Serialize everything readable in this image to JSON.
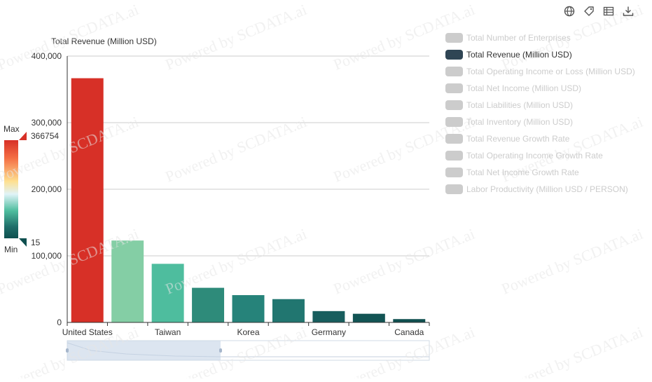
{
  "watermark_text": "Powered by SCDATA.ai",
  "toolbar": [
    {
      "name": "globe-icon"
    },
    {
      "name": "tag-icon"
    },
    {
      "name": "data-view-icon"
    },
    {
      "name": "download-icon"
    }
  ],
  "legend": {
    "items": [
      {
        "label": "Total Number of Enterprises",
        "active": false
      },
      {
        "label": "Total Revenue (Million USD)",
        "active": true
      },
      {
        "label": "Total Operating Income or Loss (Million USD)",
        "active": false
      },
      {
        "label": "Total Net Income (Million USD)",
        "active": false
      },
      {
        "label": "Total Liabilities (Million USD)",
        "active": false
      },
      {
        "label": "Total Inventory (Million USD)",
        "active": false
      },
      {
        "label": "Total Revenue Growth Rate",
        "active": false
      },
      {
        "label": "Total Operating Income Growth Rate",
        "active": false
      },
      {
        "label": "Total Net Income Growth Rate",
        "active": false
      },
      {
        "label": "Labor Productivity (Million USD / PERSON)",
        "active": false
      }
    ],
    "active_color": "#2f4554",
    "inactive_color": "#cccccc",
    "active_text_color": "#333333",
    "inactive_text_color": "#cccccc"
  },
  "visual_map": {
    "max_label": "Max",
    "min_label": "Min",
    "max_value": "366754",
    "min_value": "15",
    "colors": [
      "#d73027",
      "#f46d43",
      "#fee090",
      "#e0f3f8",
      "#4ebd9e",
      "#1f6f6a",
      "#0e4f4f"
    ]
  },
  "chart_data": {
    "type": "bar",
    "ylabel": "Total Revenue (Million USD)",
    "ylim": [
      0,
      400000
    ],
    "y_ticks": [
      "0",
      "100,000",
      "200,000",
      "300,000",
      "400,000"
    ],
    "x_tick_labels": [
      "United States",
      "",
      "Taiwan",
      "",
      "Korea",
      "",
      "Germany",
      "",
      "Canada"
    ],
    "values": [
      366754,
      123000,
      88000,
      52000,
      41000,
      35000,
      17000,
      13000,
      5000
    ],
    "colors": [
      "#d73027",
      "#84cea5",
      "#4ebd9e",
      "#2e8b7a",
      "#26837a",
      "#217670",
      "#185e5e",
      "#125454",
      "#0f4f4f"
    ],
    "grid": true,
    "legend_position": "right"
  }
}
